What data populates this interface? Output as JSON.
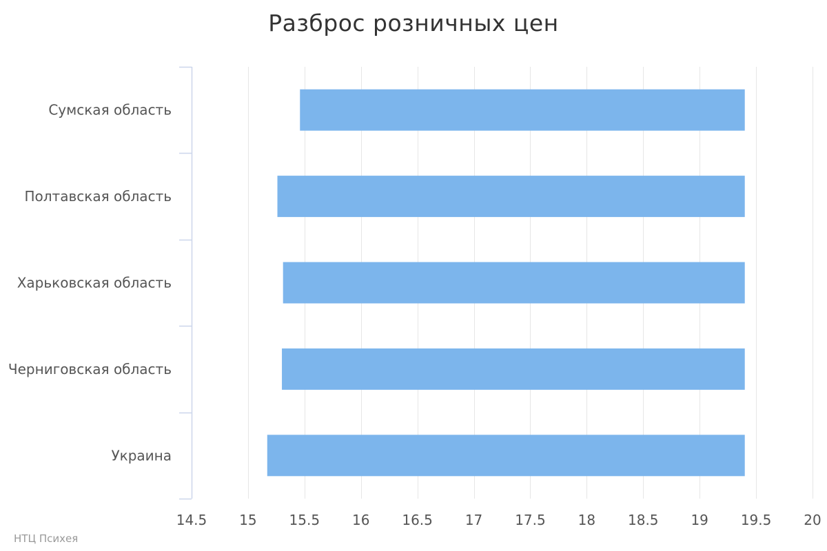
{
  "chart_data": {
    "type": "bar",
    "orientation": "horizontal",
    "title": "Разброс розничных цен",
    "categories": [
      "Сумская область",
      "Полтавская область",
      "Харьковская область",
      "Черниговская область",
      "Украина"
    ],
    "series": [
      {
        "low": [
          15.46,
          15.26,
          15.31,
          15.3,
          15.17
        ],
        "high": [
          19.4,
          19.4,
          19.4,
          19.4,
          19.4
        ]
      }
    ],
    "xlim": [
      14.5,
      20
    ],
    "xticks": [
      "14.5",
      "15",
      "15.5",
      "16",
      "16.5",
      "17",
      "17.5",
      "18",
      "18.5",
      "19",
      "19.5",
      "20"
    ],
    "xlabel": "",
    "ylabel": "",
    "grid": true,
    "legend": "none",
    "bar_color": "#7cb5ec",
    "grid_color": "#e6e6e6",
    "axis_line_color": "#ccd6eb"
  },
  "credits": "НТЦ Психея"
}
